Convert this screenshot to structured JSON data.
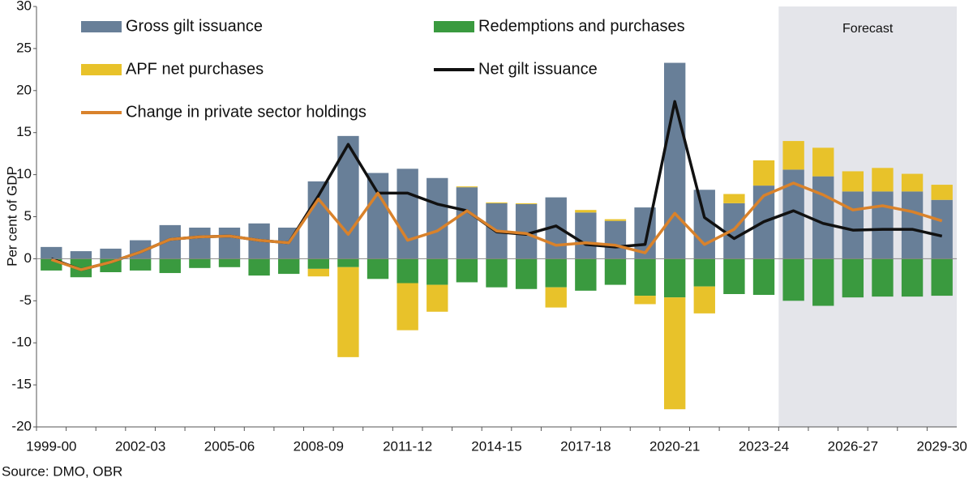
{
  "chart_data": {
    "type": "bar",
    "y_label": "Per cent of GDP",
    "source": "Source: DMO, OBR",
    "forecast_label": "Forecast",
    "categories": [
      "1999-00",
      null,
      null,
      "2002-03",
      null,
      null,
      "2005-06",
      null,
      null,
      "2008-09",
      null,
      null,
      "2011-12",
      null,
      null,
      "2014-15",
      null,
      null,
      "2017-18",
      null,
      null,
      "2020-21",
      null,
      null,
      "2023-24",
      null,
      null,
      "2026-27",
      null,
      null,
      "2029-30"
    ],
    "series": [
      {
        "name": "Gross gilt issuance",
        "type": "bar",
        "color": "#687f98",
        "values": [
          1.4,
          0.9,
          1.2,
          2.2,
          4.0,
          3.7,
          3.7,
          4.2,
          3.7,
          9.2,
          14.6,
          10.2,
          10.7,
          9.6,
          8.5,
          6.6,
          6.5,
          7.3,
          5.5,
          4.5,
          6.1,
          23.3,
          8.2,
          6.6,
          8.7,
          10.6,
          9.8,
          8.0,
          8.0,
          8.0,
          7.0
        ]
      },
      {
        "name": "Redemptions and purchases",
        "type": "bar",
        "color": "#3a9a3f",
        "values": [
          -1.4,
          -2.2,
          -1.6,
          -1.4,
          -1.7,
          -1.1,
          -1.0,
          -2.0,
          -1.8,
          -1.2,
          -1.0,
          -2.4,
          -2.9,
          -3.1,
          -2.8,
          -3.4,
          -3.6,
          -3.4,
          -3.8,
          -3.1,
          -4.4,
          -4.6,
          -3.3,
          -4.2,
          -4.3,
          -5.0,
          -5.6,
          -4.6,
          -4.5,
          -4.5,
          -4.4
        ]
      },
      {
        "name": "APF net purchases",
        "type": "bar",
        "color": "#e8c22a",
        "values": [
          0,
          0,
          0,
          0,
          0,
          0,
          0,
          0,
          0,
          -0.9,
          -10.7,
          0,
          -5.6,
          -3.2,
          0.1,
          0.1,
          0.1,
          -2.4,
          0.3,
          0.2,
          -1.0,
          -13.3,
          -3.2,
          1.1,
          3.0,
          3.4,
          3.4,
          2.4,
          2.8,
          2.1,
          1.8
        ]
      },
      {
        "name": "Net gilt issuance",
        "type": "line",
        "color": "#111111",
        "values": [
          0.0,
          -1.3,
          -0.4,
          0.8,
          2.3,
          2.6,
          2.7,
          2.2,
          1.9,
          7.5,
          13.6,
          7.8,
          7.8,
          6.5,
          5.7,
          3.2,
          2.9,
          3.9,
          1.7,
          1.4,
          1.7,
          18.7,
          4.9,
          2.4,
          4.4,
          5.7,
          4.2,
          3.4,
          3.5,
          3.5,
          2.7
        ]
      },
      {
        "name": "Change in private sector holdings",
        "type": "line",
        "color": "#d9822b",
        "values": [
          -0.1,
          -1.3,
          -0.4,
          0.8,
          2.3,
          2.6,
          2.7,
          2.2,
          1.9,
          7.1,
          2.9,
          7.8,
          2.2,
          3.3,
          5.7,
          3.3,
          3.0,
          1.6,
          1.9,
          1.6,
          0.7,
          5.4,
          1.7,
          3.5,
          7.5,
          9.0,
          7.6,
          5.8,
          6.3,
          5.6,
          4.5
        ]
      }
    ],
    "ylim": [
      -20,
      30
    ],
    "yticks": [
      -20,
      -15,
      -10,
      -5,
      0,
      5,
      10,
      15,
      20,
      25,
      30
    ],
    "grid": false
  }
}
